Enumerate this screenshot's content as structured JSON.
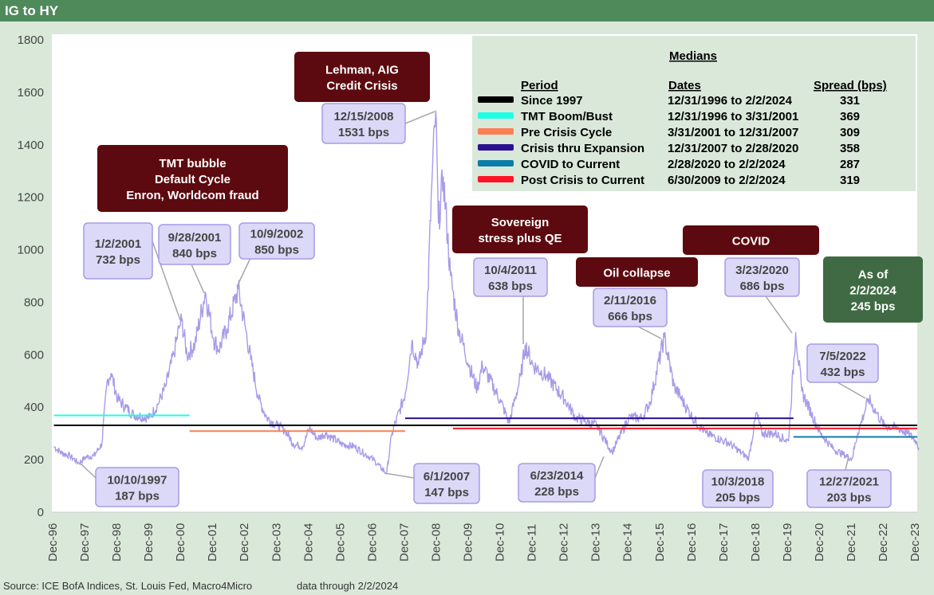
{
  "header": {
    "title": "IG to HY"
  },
  "footer": {
    "source": "Source: ICE BofA Indices, St. Louis Fed, Macro4Micro",
    "data_through": "data through 2/2/2024"
  },
  "chart_data": {
    "type": "line",
    "title": "IG to HY",
    "xlabel": "",
    "ylabel": "",
    "ylim": [
      0,
      1800
    ],
    "yticks": [
      0,
      200,
      400,
      600,
      800,
      1000,
      1200,
      1400,
      1600,
      1800
    ],
    "xticks": [
      "Dec-96",
      "Dec-97",
      "Dec-98",
      "Dec-99",
      "Dec-00",
      "Dec-01",
      "Dec-02",
      "Dec-03",
      "Dec-04",
      "Dec-05",
      "Dec-06",
      "Dec-07",
      "Dec-08",
      "Dec-09",
      "Dec-10",
      "Dec-11",
      "Dec-12",
      "Dec-13",
      "Dec-14",
      "Dec-15",
      "Dec-16",
      "Dec-17",
      "Dec-18",
      "Dec-19",
      "Dec-20",
      "Dec-21",
      "Dec-22",
      "Dec-23"
    ],
    "grid": false,
    "series_color": "#a99be8",
    "series": [
      {
        "points": [
          [
            "1996-12-31",
            250
          ],
          [
            "1997-04-01",
            225
          ],
          [
            "1997-07-01",
            215
          ],
          [
            "1997-10-10",
            187
          ],
          [
            "1997-12-31",
            210
          ],
          [
            "1998-04-01",
            215
          ],
          [
            "1998-07-01",
            260
          ],
          [
            "1998-09-01",
            500
          ],
          [
            "1998-10-15",
            530
          ],
          [
            "1998-12-31",
            430
          ],
          [
            "1999-04-01",
            400
          ],
          [
            "1999-07-01",
            370
          ],
          [
            "1999-12-31",
            360
          ],
          [
            "2000-04-01",
            410
          ],
          [
            "2000-07-01",
            480
          ],
          [
            "2000-10-01",
            600
          ],
          [
            "2000-12-01",
            700
          ],
          [
            "2001-01-02",
            732
          ],
          [
            "2001-03-01",
            600
          ],
          [
            "2001-06-01",
            640
          ],
          [
            "2001-09-28",
            840
          ],
          [
            "2001-12-31",
            660
          ],
          [
            "2002-03-01",
            620
          ],
          [
            "2002-06-01",
            700
          ],
          [
            "2002-10-09",
            850
          ],
          [
            "2002-12-31",
            700
          ],
          [
            "2003-03-01",
            580
          ],
          [
            "2003-06-01",
            430
          ],
          [
            "2003-09-01",
            360
          ],
          [
            "2003-12-31",
            330
          ],
          [
            "2004-04-01",
            310
          ],
          [
            "2004-07-01",
            260
          ],
          [
            "2004-10-15",
            250
          ],
          [
            "2004-12-31",
            320
          ],
          [
            "2005-04-01",
            280
          ],
          [
            "2005-07-01",
            300
          ],
          [
            "2005-12-31",
            260
          ],
          [
            "2006-06-01",
            250
          ],
          [
            "2006-12-31",
            200
          ],
          [
            "2007-06-01",
            147
          ],
          [
            "2007-08-01",
            300
          ],
          [
            "2007-12-31",
            450
          ],
          [
            "2008-03-15",
            650
          ],
          [
            "2008-06-01",
            560
          ],
          [
            "2008-09-01",
            700
          ],
          [
            "2008-11-01",
            1250
          ],
          [
            "2008-12-15",
            1531
          ],
          [
            "2009-01-15",
            1100
          ],
          [
            "2009-03-10",
            1280
          ],
          [
            "2009-06-01",
            900
          ],
          [
            "2009-09-01",
            700
          ],
          [
            "2009-12-31",
            560
          ],
          [
            "2010-04-01",
            470
          ],
          [
            "2010-06-01",
            560
          ],
          [
            "2010-12-31",
            420
          ],
          [
            "2011-04-01",
            340
          ],
          [
            "2011-08-15",
            520
          ],
          [
            "2011-10-04",
            638
          ],
          [
            "2011-12-31",
            560
          ],
          [
            "2012-06-01",
            520
          ],
          [
            "2012-12-31",
            430
          ],
          [
            "2013-05-01",
            360
          ],
          [
            "2013-12-31",
            330
          ],
          [
            "2014-06-23",
            228
          ],
          [
            "2014-12-31",
            360
          ],
          [
            "2015-06-01",
            360
          ],
          [
            "2015-09-01",
            420
          ],
          [
            "2016-02-11",
            666
          ],
          [
            "2016-06-01",
            480
          ],
          [
            "2016-12-31",
            360
          ],
          [
            "2017-06-01",
            300
          ],
          [
            "2017-12-31",
            270
          ],
          [
            "2018-03-01",
            260
          ],
          [
            "2018-10-03",
            205
          ],
          [
            "2018-12-31",
            380
          ],
          [
            "2019-03-01",
            300
          ],
          [
            "2019-08-01",
            300
          ],
          [
            "2019-12-31",
            270
          ],
          [
            "2020-03-23",
            686
          ],
          [
            "2020-06-01",
            460
          ],
          [
            "2020-12-31",
            300
          ],
          [
            "2021-06-01",
            240
          ],
          [
            "2021-12-27",
            203
          ],
          [
            "2022-03-01",
            300
          ],
          [
            "2022-07-05",
            432
          ],
          [
            "2022-10-01",
            380
          ],
          [
            "2022-12-31",
            330
          ],
          [
            "2023-06-01",
            320
          ],
          [
            "2023-10-01",
            300
          ],
          [
            "2023-12-31",
            270
          ],
          [
            "2024-02-02",
            245
          ]
        ]
      }
    ],
    "medians": {
      "title": "Medians",
      "headers": [
        "Period",
        "Dates",
        "Spread (bps)"
      ],
      "rows": [
        {
          "period": "Since 1997",
          "dates": "12/31/1996 to 2/2/2024",
          "spread": 331,
          "color": "#000000",
          "start": "1996-12-31",
          "end": "2024-02-02"
        },
        {
          "period": "TMT Boom/Bust",
          "dates": "12/31/1996 to 3/31/2001",
          "spread": 369,
          "color": "#1effe8",
          "start": "1996-12-31",
          "end": "2001-03-31"
        },
        {
          "period": "Pre Crisis Cycle",
          "dates": "3/31/2001 to 12/31/2007",
          "spread": 309,
          "color": "#fb7f55",
          "start": "2001-03-31",
          "end": "2007-12-31"
        },
        {
          "period": "Crisis thru Expansion",
          "dates": "12/31/2007 to 2/28/2020",
          "spread": 358,
          "color": "#2a1290",
          "start": "2007-12-31",
          "end": "2020-02-28"
        },
        {
          "period": "COVID to Current",
          "dates": "2/28/2020 to 2/2/2024",
          "spread": 287,
          "color": "#0a7ea8",
          "start": "2020-02-28",
          "end": "2024-02-02"
        },
        {
          "period": "Post Crisis to Current",
          "dates": "6/30/2009 to 2/2/2024",
          "spread": 319,
          "color": "#ff1428",
          "start": "2009-06-30",
          "end": "2024-02-02"
        }
      ]
    },
    "annotations": [
      {
        "lines": [
          "10/10/1997",
          "187 bps"
        ],
        "style": "point"
      },
      {
        "lines": [
          "1/2/2001",
          "732 bps"
        ],
        "style": "point"
      },
      {
        "lines": [
          "9/28/2001",
          "840 bps"
        ],
        "style": "point"
      },
      {
        "lines": [
          "10/9/2002",
          "850 bps"
        ],
        "style": "point"
      },
      {
        "lines": [
          "12/15/2008",
          "1531 bps"
        ],
        "style": "point"
      },
      {
        "lines": [
          "6/1/2007",
          "147 bps"
        ],
        "style": "point"
      },
      {
        "lines": [
          "10/4/2011",
          "638 bps"
        ],
        "style": "point"
      },
      {
        "lines": [
          "6/23/2014",
          "228 bps"
        ],
        "style": "point"
      },
      {
        "lines": [
          "2/11/2016",
          "666 bps"
        ],
        "style": "point"
      },
      {
        "lines": [
          "3/23/2020",
          "686 bps"
        ],
        "style": "point"
      },
      {
        "lines": [
          "10/3/2018",
          "205 bps"
        ],
        "style": "point"
      },
      {
        "lines": [
          "12/27/2021",
          "203 bps"
        ],
        "style": "point"
      },
      {
        "lines": [
          "7/5/2022",
          "432 bps"
        ],
        "style": "point"
      },
      {
        "lines": [
          "Lehman, AIG",
          "Credit Crisis"
        ],
        "style": "event"
      },
      {
        "lines": [
          "TMT bubble",
          "Default Cycle",
          "Enron, Worldcom fraud"
        ],
        "style": "event"
      },
      {
        "lines": [
          "Sovereign",
          "stress plus QE"
        ],
        "style": "event"
      },
      {
        "lines": [
          "Oil collapse"
        ],
        "style": "event"
      },
      {
        "lines": [
          "COVID"
        ],
        "style": "event"
      },
      {
        "lines": [
          "As of",
          "2/2/2024",
          "245 bps"
        ],
        "style": "current"
      }
    ]
  }
}
